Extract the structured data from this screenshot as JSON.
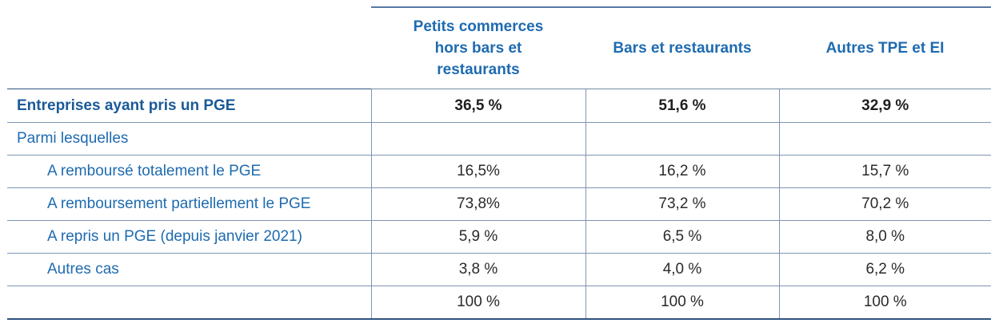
{
  "table": {
    "headers": [
      "",
      "Petits commerces hors bars et restaurants",
      "Bars et restaurants",
      "Autres TPE et EI"
    ],
    "header_lines": {
      "col1": [
        "Petits commerces",
        "hors bars et",
        "restaurants"
      ]
    },
    "rows": [
      {
        "label": "Entreprises ayant pris un PGE",
        "values": [
          "36,5 %",
          "51,6 %",
          "32,9 %"
        ]
      },
      {
        "label": "Parmi lesquelles",
        "values": [
          "",
          "",
          ""
        ]
      },
      {
        "label": "A remboursé totalement le PGE",
        "values": [
          "16,5%",
          "16,2 %",
          "15,7 %"
        ]
      },
      {
        "label": "A remboursement partiellement le PGE",
        "values": [
          "73,8%",
          "73,2 %",
          "70,2 %"
        ]
      },
      {
        "label": "A repris un PGE (depuis janvier 2021)",
        "values": [
          "5,9 %",
          "6,5 %",
          "8,0 %"
        ]
      },
      {
        "label": "Autres cas",
        "values": [
          "3,8 %",
          "4,0 %",
          "6,2 %"
        ]
      },
      {
        "label": "",
        "values": [
          "100 %",
          "100 %",
          "100 %"
        ]
      }
    ]
  },
  "colors": {
    "header_text": "#1e6bb0",
    "row_label_text": "#1e6bb0",
    "rule": "#2f527e"
  }
}
